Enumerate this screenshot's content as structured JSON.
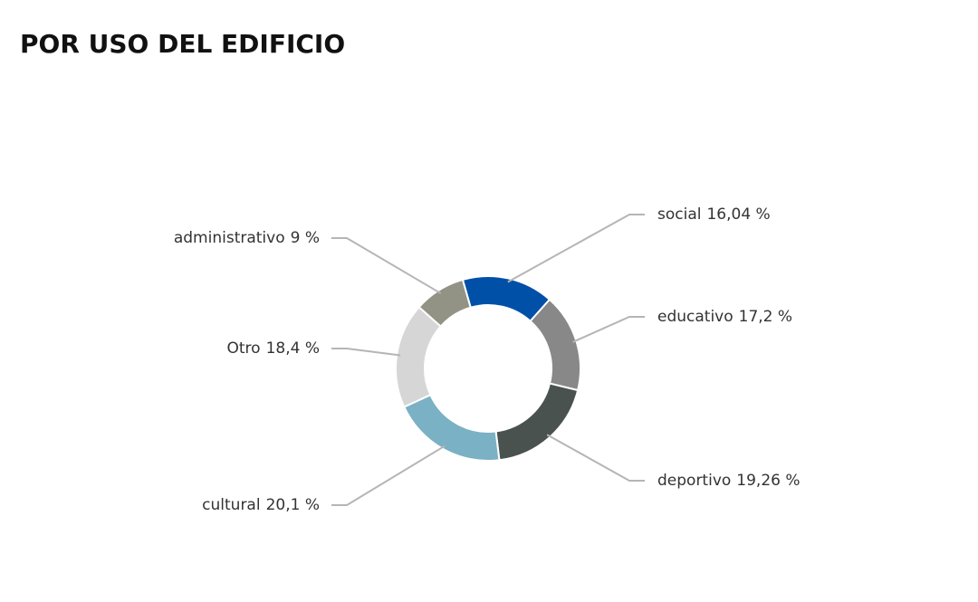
{
  "chart_data": {
    "type": "donut",
    "title": "POR USO DEL EDIFICIO",
    "categories": [
      "social",
      "educativo",
      "deportivo",
      "cultural",
      "Otro",
      "administrativo"
    ],
    "values": [
      16.04,
      17.2,
      19.26,
      20.1,
      18.4,
      9
    ],
    "value_labels": [
      "16,04 %",
      "17,2 %",
      "19,26 %",
      "20,1 %",
      "18,4 %",
      "9 %"
    ],
    "colors": [
      "#0050a8",
      "#888888",
      "#4a524f",
      "#7bb1c4",
      "#d6d6d6",
      "#929385"
    ]
  }
}
